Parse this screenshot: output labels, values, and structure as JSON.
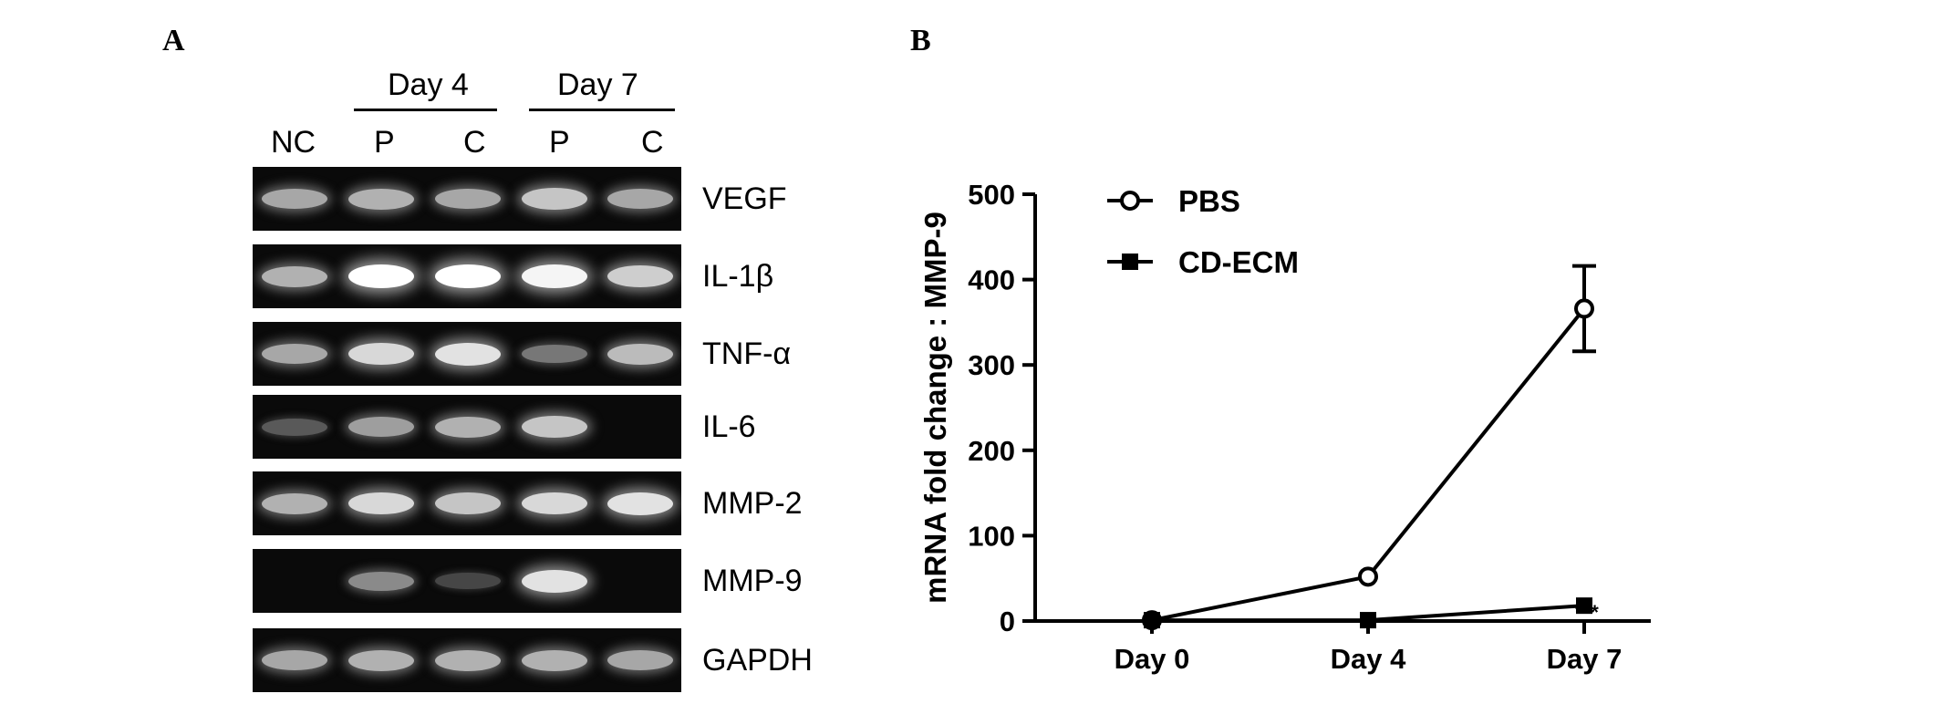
{
  "panels": {
    "a": "A",
    "b": "B"
  },
  "gel": {
    "groups": [
      {
        "label": "Day 4"
      },
      {
        "label": "Day 7"
      }
    ],
    "lanes": [
      "NC",
      "P",
      "C",
      "P",
      "C"
    ],
    "rows": [
      {
        "gene": "VEGF",
        "intensity": [
          0.55,
          0.6,
          0.55,
          0.7,
          0.55
        ]
      },
      {
        "gene": "IL-1β",
        "intensity": [
          0.6,
          1.0,
          1.0,
          0.95,
          0.75
        ]
      },
      {
        "gene": "TNF-α",
        "intensity": [
          0.55,
          0.8,
          0.85,
          0.3,
          0.65
        ]
      },
      {
        "gene": "IL-6",
        "intensity": [
          0.15,
          0.5,
          0.6,
          0.7,
          0.0
        ]
      },
      {
        "gene": "MMP-2",
        "intensity": [
          0.6,
          0.8,
          0.7,
          0.8,
          0.85
        ]
      },
      {
        "gene": "MMP-9",
        "intensity": [
          0.0,
          0.4,
          0.05,
          0.85,
          0.0
        ]
      },
      {
        "gene": "GAPDH",
        "intensity": [
          0.55,
          0.6,
          0.6,
          0.6,
          0.55
        ]
      }
    ]
  },
  "chart_data": {
    "type": "line",
    "ylabel": "mRNA fold change : MMP-9",
    "xlabel": "",
    "categories": [
      "Day 0",
      "Day 4",
      "Day 7"
    ],
    "ylim": [
      0,
      500
    ],
    "yticks": [
      0,
      100,
      200,
      300,
      400,
      500
    ],
    "legend_position": "top-left",
    "series": [
      {
        "name": "PBS",
        "marker": "open-circle",
        "values": [
          1,
          52,
          366
        ],
        "error": [
          0,
          0,
          50
        ]
      },
      {
        "name": "CD-ECM",
        "marker": "filled-square",
        "values": [
          1,
          1,
          18
        ],
        "error": [
          0,
          0,
          0
        ]
      }
    ],
    "annotations": [
      {
        "text": "***",
        "category": "Day 7",
        "series": "CD-ECM"
      }
    ]
  }
}
